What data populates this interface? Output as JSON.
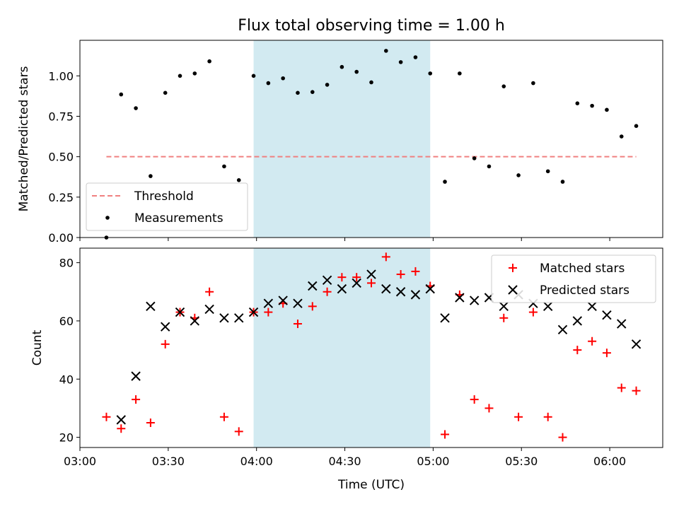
{
  "chart_data": [
    {
      "type": "scatter",
      "title": "Flux total observing time = 1.00 h",
      "ylabel": "Matched/Predicted stars",
      "ylim": [
        0,
        1.22
      ],
      "yticks": [
        0.0,
        0.25,
        0.5,
        0.75,
        1.0
      ],
      "ytick_labels": [
        "0.00",
        "0.25",
        "0.50",
        "0.75",
        "1.00"
      ],
      "xlim_minutes": [
        180,
        378
      ],
      "shaded_span": {
        "from": "03:59",
        "to": "04:59",
        "color": "#add8e6"
      },
      "legend": {
        "position": "lower-left",
        "entries": [
          "Threshold",
          "Measurements"
        ]
      },
      "threshold": {
        "name": "Threshold",
        "value": 0.5,
        "x_from": "03:09",
        "x_to": "06:09",
        "color": "#f08080"
      },
      "series": [
        {
          "name": "Measurements",
          "color": "#000000",
          "points": [
            [
              "03:09",
              0.0
            ],
            [
              "03:14",
              0.885
            ],
            [
              "03:19",
              0.8
            ],
            [
              "03:24",
              0.38
            ],
            [
              "03:29",
              0.895
            ],
            [
              "03:34",
              1.0
            ],
            [
              "03:39",
              1.015
            ],
            [
              "03:44",
              1.09
            ],
            [
              "03:49",
              0.44
            ],
            [
              "03:54",
              0.355
            ],
            [
              "03:59",
              1.0
            ],
            [
              "04:04",
              0.955
            ],
            [
              "04:09",
              0.985
            ],
            [
              "04:14",
              0.895
            ],
            [
              "04:19",
              0.9
            ],
            [
              "04:24",
              0.945
            ],
            [
              "04:29",
              1.055
            ],
            [
              "04:34",
              1.025
            ],
            [
              "04:39",
              0.96
            ],
            [
              "04:44",
              1.155
            ],
            [
              "04:49",
              1.085
            ],
            [
              "04:54",
              1.115
            ],
            [
              "04:59",
              1.015
            ],
            [
              "05:04",
              0.345
            ],
            [
              "05:09",
              1.015
            ],
            [
              "05:14",
              0.49
            ],
            [
              "05:19",
              0.44
            ],
            [
              "05:24",
              0.935
            ],
            [
              "05:29",
              0.385
            ],
            [
              "05:34",
              0.955
            ],
            [
              "05:39",
              0.41
            ],
            [
              "05:44",
              0.345
            ],
            [
              "05:49",
              0.83
            ],
            [
              "05:54",
              0.815
            ],
            [
              "05:59",
              0.79
            ],
            [
              "06:04",
              0.625
            ],
            [
              "06:09",
              0.69
            ]
          ]
        }
      ]
    },
    {
      "type": "scatter",
      "xlabel": "Time (UTC)",
      "ylabel": "Count",
      "ylim": [
        16.5,
        85
      ],
      "yticks": [
        20,
        40,
        60,
        80
      ],
      "xticks": [
        "03:00",
        "03:30",
        "04:00",
        "04:30",
        "05:00",
        "05:30",
        "06:00"
      ],
      "xlim_minutes": [
        180,
        378
      ],
      "shaded_span": {
        "from": "03:59",
        "to": "04:59",
        "color": "#add8e6"
      },
      "legend": {
        "position": "top-right",
        "entries": [
          "Matched stars",
          "Predicted stars"
        ]
      },
      "series": [
        {
          "name": "Matched stars",
          "marker": "+",
          "color": "#ff0000",
          "points": [
            [
              "03:09",
              27
            ],
            [
              "03:14",
              23
            ],
            [
              "03:19",
              33
            ],
            [
              "03:24",
              25
            ],
            [
              "03:29",
              52
            ],
            [
              "03:34",
              63
            ],
            [
              "03:39",
              61
            ],
            [
              "03:44",
              70
            ],
            [
              "03:49",
              27
            ],
            [
              "03:54",
              22
            ],
            [
              "03:59",
              63
            ],
            [
              "04:04",
              63
            ],
            [
              "04:09",
              66
            ],
            [
              "04:14",
              59
            ],
            [
              "04:19",
              65
            ],
            [
              "04:24",
              70
            ],
            [
              "04:29",
              75
            ],
            [
              "04:34",
              75
            ],
            [
              "04:39",
              73
            ],
            [
              "04:44",
              82
            ],
            [
              "04:49",
              76
            ],
            [
              "04:54",
              77
            ],
            [
              "04:59",
              72
            ],
            [
              "05:04",
              21
            ],
            [
              "05:09",
              69
            ],
            [
              "05:14",
              33
            ],
            [
              "05:19",
              30
            ],
            [
              "05:24",
              61
            ],
            [
              "05:29",
              27
            ],
            [
              "05:34",
              63
            ],
            [
              "05:39",
              27
            ],
            [
              "05:44",
              20
            ],
            [
              "05:49",
              50
            ],
            [
              "05:54",
              53
            ],
            [
              "05:59",
              49
            ],
            [
              "06:04",
              37
            ],
            [
              "06:09",
              36
            ]
          ]
        },
        {
          "name": "Predicted stars",
          "marker": "x",
          "color": "#000000",
          "points": [
            [
              "03:14",
              26
            ],
            [
              "03:19",
              41
            ],
            [
              "03:24",
              65
            ],
            [
              "03:29",
              58
            ],
            [
              "03:34",
              63
            ],
            [
              "03:39",
              60
            ],
            [
              "03:44",
              64
            ],
            [
              "03:49",
              61
            ],
            [
              "03:54",
              61
            ],
            [
              "03:59",
              63
            ],
            [
              "04:04",
              66
            ],
            [
              "04:09",
              67
            ],
            [
              "04:14",
              66
            ],
            [
              "04:19",
              72
            ],
            [
              "04:24",
              74
            ],
            [
              "04:29",
              71
            ],
            [
              "04:34",
              73
            ],
            [
              "04:39",
              76
            ],
            [
              "04:44",
              71
            ],
            [
              "04:49",
              70
            ],
            [
              "04:54",
              69
            ],
            [
              "04:59",
              71
            ],
            [
              "05:04",
              61
            ],
            [
              "05:09",
              68
            ],
            [
              "05:14",
              67
            ],
            [
              "05:19",
              68
            ],
            [
              "05:24",
              65
            ],
            [
              "05:29",
              69
            ],
            [
              "05:34",
              66
            ],
            [
              "05:39",
              65
            ],
            [
              "05:44",
              57
            ],
            [
              "05:49",
              60
            ],
            [
              "05:54",
              65
            ],
            [
              "05:59",
              62
            ],
            [
              "06:04",
              59
            ],
            [
              "06:09",
              52
            ]
          ]
        }
      ]
    }
  ]
}
